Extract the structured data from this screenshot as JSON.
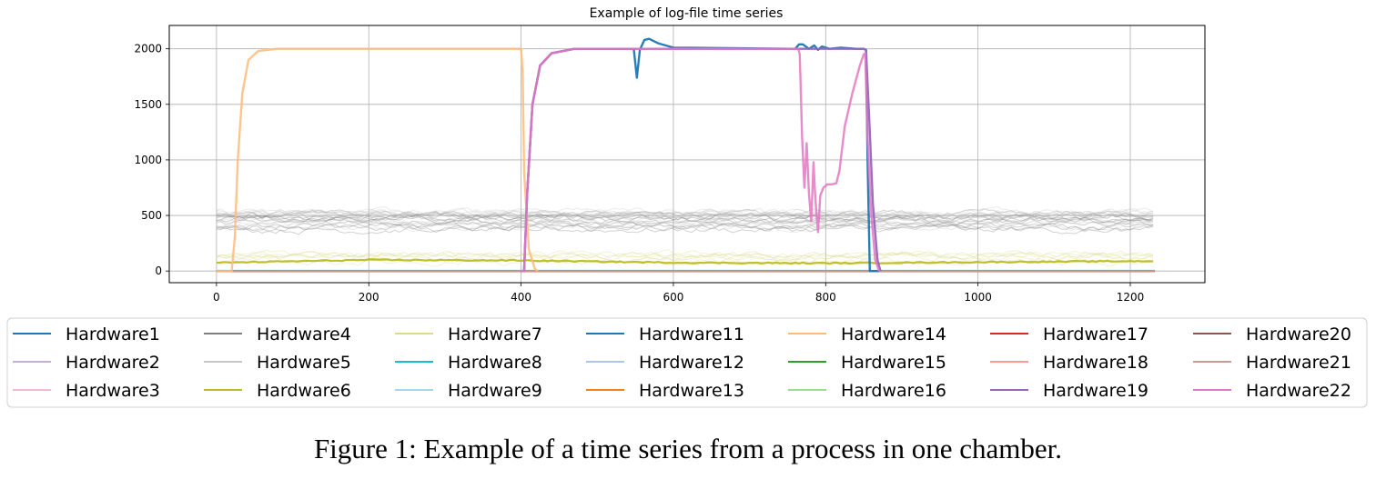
{
  "caption": "Figure 1: Example of a time series from a process in one chamber.",
  "chart_data": {
    "type": "line",
    "title": "Example of log-file time series",
    "xlabel": "",
    "ylabel": "",
    "xlim": [
      -62,
      1298
    ],
    "ylim": [
      -105,
      2210
    ],
    "xticks": [
      0,
      200,
      400,
      600,
      800,
      1000,
      1200
    ],
    "yticks": [
      0,
      500,
      1000,
      1500,
      2000
    ],
    "grid": true,
    "legend_position": "below",
    "legend_columns": 7,
    "series": [
      {
        "name": "Hardware1",
        "color": "#1f77b4",
        "kind": "flat",
        "params": {
          "level": 0
        }
      },
      {
        "name": "Hardware2",
        "color": "#c5b0d5",
        "kind": "flat",
        "params": {
          "level": 0
        }
      },
      {
        "name": "Hardware3",
        "color": "#f7b6d2",
        "kind": "flat",
        "params": {
          "level": 0
        }
      },
      {
        "name": "Hardware4",
        "color": "#7f7f7f",
        "kind": "noise_band",
        "params": {
          "copies": 12,
          "low": 320,
          "high": 560
        }
      },
      {
        "name": "Hardware5",
        "color": "#c7c7c7",
        "kind": "noise_band",
        "params": {
          "copies": 10,
          "low": 300,
          "high": 620
        }
      },
      {
        "name": "Hardware6",
        "color": "#bcbd22",
        "kind": "wave",
        "params": {
          "points": [
            [
              0,
              75
            ],
            [
              200,
              100
            ],
            [
              400,
              95
            ],
            [
              600,
              75
            ],
            [
              800,
              70
            ],
            [
              1000,
              80
            ],
            [
              1232,
              90
            ]
          ]
        }
      },
      {
        "name": "Hardware7",
        "color": "#dbdb8d",
        "kind": "noise_band",
        "params": {
          "copies": 6,
          "low": 60,
          "high": 170
        }
      },
      {
        "name": "Hardware8",
        "color": "#17becf",
        "kind": "flat",
        "params": {
          "level": 2
        }
      },
      {
        "name": "Hardware9",
        "color": "#9edae5",
        "kind": "flat",
        "params": {
          "level": 0
        }
      },
      {
        "name": "Hardware11",
        "color": "#1f77b4",
        "kind": "points",
        "params": {
          "points": [
            [
              400,
              0
            ],
            [
              404,
              0
            ],
            [
              408,
              700
            ],
            [
              415,
              1500
            ],
            [
              425,
              1850
            ],
            [
              440,
              1960
            ],
            [
              470,
              2000
            ],
            [
              548,
              2000
            ],
            [
              552,
              1740
            ],
            [
              556,
              1990
            ],
            [
              562,
              2080
            ],
            [
              568,
              2090
            ],
            [
              580,
              2050
            ],
            [
              600,
              2010
            ],
            [
              760,
              2000
            ],
            [
              765,
              2040
            ],
            [
              770,
              2040
            ],
            [
              778,
              2000
            ],
            [
              785,
              2030
            ],
            [
              790,
              1990
            ],
            [
              795,
              2020
            ],
            [
              805,
              2000
            ],
            [
              820,
              2010
            ],
            [
              840,
              2000
            ],
            [
              850,
              2000
            ],
            [
              853,
              1990
            ],
            [
              855,
              1000
            ],
            [
              858,
              0
            ],
            [
              870,
              0
            ]
          ]
        }
      },
      {
        "name": "Hardware12",
        "color": "#aec7e8",
        "kind": "flat",
        "params": {
          "level": 0
        }
      },
      {
        "name": "Hardware13",
        "color": "#ff7f0e",
        "kind": "flat",
        "params": {
          "level": 0
        }
      },
      {
        "name": "Hardware14",
        "color": "#ffbb78",
        "kind": "points",
        "params": {
          "points": [
            [
              0,
              0
            ],
            [
              20,
              0
            ],
            [
              24,
              300
            ],
            [
              28,
              1000
            ],
            [
              34,
              1600
            ],
            [
              42,
              1900
            ],
            [
              55,
              1980
            ],
            [
              80,
              2000
            ],
            [
              400,
              2000
            ],
            [
              402,
              1800
            ],
            [
              404,
              900
            ],
            [
              410,
              200
            ],
            [
              418,
              20
            ],
            [
              422,
              0
            ]
          ]
        }
      },
      {
        "name": "Hardware15",
        "color": "#2ca02c",
        "kind": "flat",
        "params": {
          "level": 0
        }
      },
      {
        "name": "Hardware16",
        "color": "#98df8a",
        "kind": "flat",
        "params": {
          "level": 0
        }
      },
      {
        "name": "Hardware17",
        "color": "#d62728",
        "kind": "flat",
        "params": {
          "level": 0
        }
      },
      {
        "name": "Hardware18",
        "color": "#ff9896",
        "kind": "flat",
        "params": {
          "level": 0
        }
      },
      {
        "name": "Hardware19",
        "color": "#9467bd",
        "kind": "points",
        "params": {
          "points": [
            [
              400,
              0
            ],
            [
              404,
              0
            ],
            [
              408,
              700
            ],
            [
              415,
              1500
            ],
            [
              425,
              1850
            ],
            [
              440,
              1960
            ],
            [
              470,
              2000
            ],
            [
              760,
              2000
            ],
            [
              850,
              2000
            ],
            [
              853,
              1990
            ],
            [
              857,
              1400
            ],
            [
              862,
              600
            ],
            [
              868,
              100
            ],
            [
              872,
              0
            ]
          ]
        }
      },
      {
        "name": "Hardware20",
        "color": "#8c564b",
        "kind": "flat",
        "params": {
          "level": 0
        }
      },
      {
        "name": "Hardware21",
        "color": "#c49c94",
        "kind": "flat",
        "params": {
          "level": 0
        }
      },
      {
        "name": "Hardware22",
        "color": "#e377c2",
        "kind": "points",
        "params": {
          "points": [
            [
              400,
              0
            ],
            [
              404,
              0
            ],
            [
              408,
              700
            ],
            [
              415,
              1500
            ],
            [
              425,
              1850
            ],
            [
              440,
              1960
            ],
            [
              470,
              2000
            ],
            [
              764,
              2000
            ],
            [
              766,
              1950
            ],
            [
              769,
              1200
            ],
            [
              772,
              750
            ],
            [
              775,
              1150
            ],
            [
              778,
              700
            ],
            [
              781,
              450
            ],
            [
              784,
              980
            ],
            [
              786,
              700
            ],
            [
              788,
              500
            ],
            [
              790,
              350
            ],
            [
              793,
              680
            ],
            [
              797,
              750
            ],
            [
              802,
              780
            ],
            [
              808,
              780
            ],
            [
              814,
              790
            ],
            [
              818,
              900
            ],
            [
              825,
              1300
            ],
            [
              835,
              1600
            ],
            [
              845,
              1850
            ],
            [
              850,
              1950
            ],
            [
              852,
              1960
            ],
            [
              855,
              1200
            ],
            [
              860,
              500
            ],
            [
              865,
              100
            ],
            [
              870,
              0
            ]
          ]
        }
      }
    ]
  }
}
